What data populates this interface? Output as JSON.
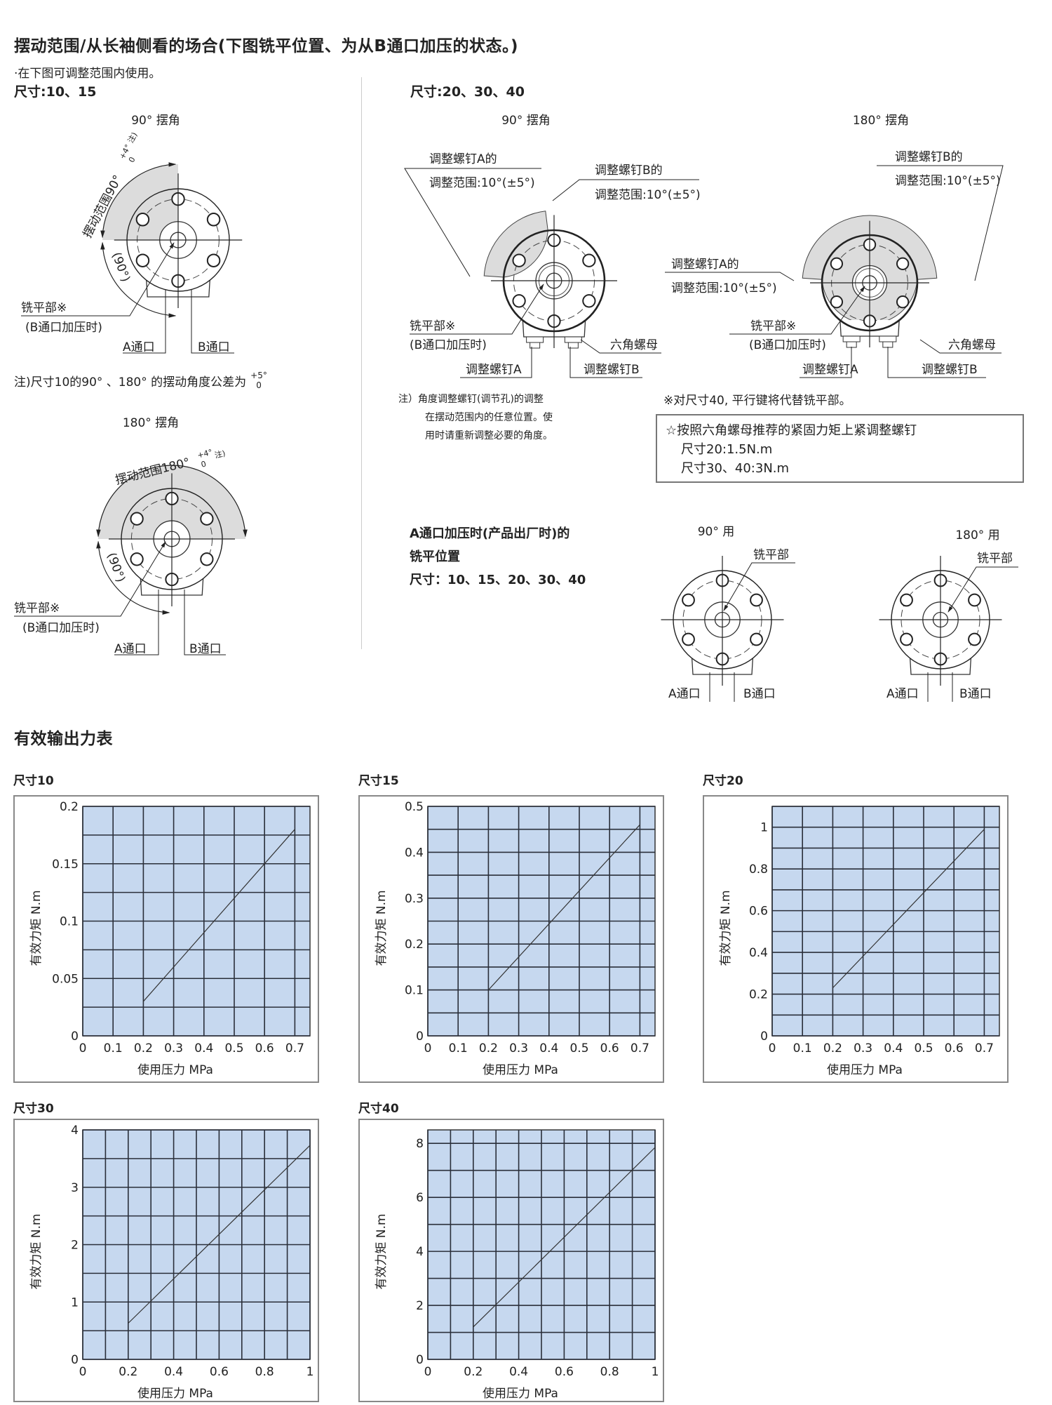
{
  "swing_section": {
    "title": "摆动范围/从长袖侧看的场合(下图铣平位置、为从B通口加压的状态。)",
    "usage_note": "·在下图可调整范围内使用。",
    "small_sizes_label": "尺寸:10、15",
    "large_sizes_label": "尺寸:20、30、40",
    "small_90": {
      "title": "90° 摆角",
      "range_label": "摆动范围90°",
      "tol_upper": "+4°",
      "tol_lower": "0",
      "tol_note": "注)",
      "quarter_label": "(90°)",
      "flat_label": "铣平部※",
      "flat_sub": "(B通口加压时)",
      "port_a": "A通口",
      "port_b": "B通口"
    },
    "small_note": {
      "text": "注)尺寸10的90° 、180° 的摆动角度公差为",
      "upper": "+5°",
      "lower": "0"
    },
    "small_180": {
      "title": "180° 摆角",
      "range_label": "摆动范围180°",
      "tol_upper": "+4°",
      "tol_lower": "0",
      "tol_note": "注)",
      "quarter_label": "(90°)",
      "flat_label": "铣平部※",
      "flat_sub": "(B通口加压时)",
      "port_a": "A通口",
      "port_b": "B通口"
    },
    "large_90": {
      "title": "90° 摆角",
      "screw_a_range_1": "调整螺钉A的",
      "screw_a_range_2": "调整范围:10°(±5°)",
      "screw_b_range_1": "调整螺钉B的",
      "screw_b_range_2": "调整范围:10°(±5°)",
      "flat_label": "铣平部※",
      "flat_sub": "(B通口加压时)",
      "hex_nut": "六角螺母",
      "screw_a": "调整螺钉A",
      "screw_b": "调整螺钉B"
    },
    "large_180": {
      "title": "180° 摆角",
      "screw_a_range_1": "调整螺钉A的",
      "screw_a_range_2": "调整范围:10°(±5°)",
      "screw_b_range_1": "调整螺钉B的",
      "screw_b_range_2": "调整范围:10°(±5°)",
      "flat_label": "铣平部※",
      "flat_sub": "(B通口加压时)",
      "hex_nut": "六角螺母",
      "screw_a": "调整螺钉A",
      "screw_b": "调整螺钉B"
    },
    "adjust_note": [
      "注）角度调整螺钉(调节孔)的调整",
      "在摆动范围内的任意位置。使",
      "用时请重新调整必要的角度。"
    ],
    "size40_note": "※对尺寸40, 平行键将代替铣平部。",
    "torque_box": {
      "heading": "☆按照六角螺母推荐的紧固力矩上紧调整螺钉",
      "lines": [
        "尺寸20:1.5N.m",
        "尺寸30、40:3N.m"
      ]
    }
  },
  "port_a_section": {
    "title_1": "A通口加压时(产品出厂时)的",
    "title_2": "铣平位置",
    "sizes": "尺寸：10、15、20、30、40",
    "d90": {
      "title": "90° 用",
      "flat_label": "铣平部",
      "port_a": "A通口",
      "port_b": "B通口"
    },
    "d180": {
      "title": "180° 用",
      "flat_label": "铣平部",
      "port_a": "A通口",
      "port_b": "B通口"
    }
  },
  "output_section": {
    "title": "有效输出力表"
  },
  "chart_data": [
    {
      "type": "line",
      "title": "尺寸10",
      "xlabel": "使用压力 MPa",
      "ylabel": "有效力矩 N.m",
      "xlim": [
        0,
        0.75
      ],
      "ylim": [
        0,
        0.2
      ],
      "x_grid_step": 0.1,
      "y_grid_step": 0.025,
      "grid": true,
      "x_ticks": [
        0,
        0.1,
        0.2,
        0.3,
        0.4,
        0.5,
        0.6,
        0.7
      ],
      "y_ticks": [
        0,
        0.05,
        0.1,
        0.15,
        0.2
      ],
      "x": [
        0.2,
        0.7
      ],
      "y": [
        0.03,
        0.18
      ],
      "plot_bg": "#c6d8ef"
    },
    {
      "type": "line",
      "title": "尺寸15",
      "xlabel": "使用压力 MPa",
      "ylabel": "有效力矩 N.m",
      "xlim": [
        0,
        0.75
      ],
      "ylim": [
        0,
        0.5
      ],
      "x_grid_step": 0.1,
      "y_grid_step": 0.05,
      "grid": true,
      "x_ticks": [
        0,
        0.1,
        0.2,
        0.3,
        0.4,
        0.5,
        0.6,
        0.7
      ],
      "y_ticks": [
        0,
        0.1,
        0.2,
        0.3,
        0.4,
        0.5
      ],
      "x": [
        0.2,
        0.7
      ],
      "y": [
        0.1,
        0.46
      ],
      "plot_bg": "#c6d8ef"
    },
    {
      "type": "line",
      "title": "尺寸20",
      "xlabel": "使用压力 MPa",
      "ylabel": "有效力矩 N.m",
      "xlim": [
        0,
        0.75
      ],
      "ylim": [
        0,
        1.1
      ],
      "x_grid_step": 0.1,
      "y_grid_step": 0.1,
      "grid": true,
      "x_ticks": [
        0,
        0.1,
        0.2,
        0.3,
        0.4,
        0.5,
        0.6,
        0.7
      ],
      "y_ticks": [
        0,
        0.2,
        0.4,
        0.6,
        0.8,
        1
      ],
      "x": [
        0.2,
        0.7
      ],
      "y": [
        0.23,
        0.99
      ],
      "plot_bg": "#c6d8ef"
    },
    {
      "type": "line",
      "title": "尺寸30",
      "xlabel": "使用压力 MPa",
      "ylabel": "有效力矩 N.m",
      "xlim": [
        0,
        1
      ],
      "ylim": [
        0,
        4
      ],
      "x_grid_step": 0.1,
      "y_grid_step": 0.5,
      "grid": true,
      "x_ticks": [
        0,
        0.2,
        0.4,
        0.6,
        0.8,
        1
      ],
      "y_ticks": [
        0,
        1,
        2,
        3,
        4
      ],
      "x": [
        0.2,
        1
      ],
      "y": [
        0.63,
        3.73
      ],
      "plot_bg": "#c6d8ef"
    },
    {
      "type": "line",
      "title": "尺寸40",
      "xlabel": "使用压力 MPa",
      "ylabel": "有效力矩 N.m",
      "xlim": [
        0,
        1
      ],
      "ylim": [
        0,
        8.5
      ],
      "x_grid_step": 0.1,
      "y_grid_step": 1,
      "grid": true,
      "x_ticks": [
        0,
        0.2,
        0.4,
        0.6,
        0.8,
        1
      ],
      "y_ticks": [
        0,
        2,
        4,
        6,
        8
      ],
      "x": [
        0.2,
        1
      ],
      "y": [
        1.2,
        7.85
      ],
      "plot_bg": "#c6d8ef"
    }
  ]
}
